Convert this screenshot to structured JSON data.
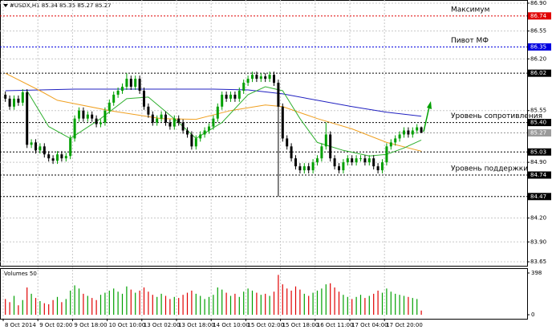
{
  "chart_data": {
    "type": "candlestick",
    "title": "#USDX,H1 85.34 85.35 85.27 85.27",
    "categories": [
      "8 Oct 2014",
      null,
      null,
      null,
      null,
      null,
      null,
      null,
      "9 Oct 02:00",
      null,
      null,
      null,
      null,
      null,
      null,
      null,
      "9 Oct 18:00",
      null,
      null,
      null,
      null,
      null,
      null,
      null,
      "10 Oct 10:00",
      null,
      null,
      null,
      null,
      null,
      null,
      null,
      "13 Oct 02:00",
      null,
      null,
      null,
      null,
      null,
      null,
      null,
      "13 Oct 18:00",
      null,
      null,
      null,
      null,
      null,
      null,
      null,
      "14 Oct 10:00",
      null,
      null,
      null,
      null,
      null,
      null,
      null,
      "15 Oct 02:00",
      null,
      null,
      null,
      null,
      null,
      null,
      null,
      "15 Oct 18:00",
      null,
      null,
      null,
      null,
      null,
      null,
      null,
      "16 Oct 11:00",
      null,
      null,
      null,
      null,
      null,
      null,
      null,
      "17 Oct 04:00",
      null,
      null,
      null,
      null,
      null,
      null,
      null,
      "17 Oct 20:00",
      null,
      null,
      null,
      null,
      null,
      null,
      null,
      null
    ],
    "open": [
      85.75,
      85.7,
      85.6,
      85.7,
      85.65,
      85.78,
      85.12,
      85.15,
      85.05,
      85.1,
      85.0,
      84.95,
      84.92,
      85.0,
      84.95,
      84.98,
      85.2,
      85.45,
      85.55,
      85.45,
      85.5,
      85.45,
      85.38,
      85.4,
      85.55,
      85.65,
      85.75,
      85.8,
      85.85,
      85.95,
      85.85,
      85.95,
      85.8,
      85.6,
      85.5,
      85.4,
      85.45,
      85.5,
      85.4,
      85.35,
      85.45,
      85.4,
      85.3,
      85.25,
      85.1,
      85.2,
      85.25,
      85.3,
      85.35,
      85.45,
      85.6,
      85.75,
      85.7,
      85.75,
      85.7,
      85.8,
      85.9,
      85.95,
      86.0,
      85.95,
      85.98,
      85.95,
      86.0,
      85.9,
      85.6,
      85.2,
      85.1,
      84.95,
      84.85,
      84.8,
      84.85,
      84.8,
      84.9,
      84.95,
      85.1,
      85.25,
      84.95,
      84.85,
      84.8,
      84.9,
      84.95,
      84.9,
      84.95,
      84.95,
      84.9,
      84.95,
      84.85,
      84.8,
      84.9,
      85.1,
      85.15,
      85.2,
      85.25,
      85.3,
      85.25,
      85.3,
      85.34
    ],
    "high": [
      85.79,
      85.74,
      85.74,
      85.74,
      85.82,
      85.82,
      85.19,
      85.19,
      85.14,
      85.14,
      85.04,
      84.99,
      85.04,
      85.04,
      85.02,
      85.24,
      85.49,
      85.59,
      85.59,
      85.54,
      85.54,
      85.49,
      85.44,
      85.59,
      85.69,
      85.79,
      85.84,
      85.89,
      86.02,
      85.99,
      85.99,
      85.99,
      85.84,
      85.64,
      85.54,
      85.49,
      85.54,
      85.54,
      85.44,
      85.49,
      85.49,
      85.44,
      85.34,
      85.29,
      85.24,
      85.29,
      85.34,
      85.39,
      85.49,
      85.64,
      85.79,
      85.79,
      85.79,
      85.79,
      85.84,
      85.94,
      85.99,
      86.04,
      86.04,
      86.02,
      86.02,
      86.04,
      86.04,
      85.94,
      85.64,
      85.24,
      85.14,
      84.99,
      84.89,
      84.89,
      84.89,
      84.94,
      84.99,
      85.14,
      85.4,
      85.29,
      84.99,
      84.89,
      84.94,
      84.99,
      84.99,
      84.99,
      84.99,
      84.99,
      84.99,
      84.99,
      84.89,
      84.94,
      85.14,
      85.19,
      85.24,
      85.29,
      85.34,
      85.34,
      85.34,
      85.38,
      85.35
    ],
    "low": [
      85.66,
      85.56,
      85.56,
      85.61,
      85.61,
      85.08,
      85.08,
      85.01,
      85.01,
      84.96,
      84.91,
      84.88,
      84.88,
      84.91,
      84.91,
      84.94,
      85.16,
      85.41,
      85.41,
      85.41,
      85.41,
      85.34,
      85.34,
      85.36,
      85.51,
      85.61,
      85.71,
      85.76,
      85.81,
      85.81,
      85.81,
      85.76,
      85.56,
      85.46,
      85.36,
      85.36,
      85.41,
      85.36,
      85.31,
      85.31,
      85.36,
      85.26,
      85.21,
      85.06,
      85.06,
      85.16,
      85.21,
      85.26,
      85.31,
      85.41,
      85.56,
      85.66,
      85.66,
      85.66,
      85.66,
      85.76,
      85.86,
      85.91,
      85.91,
      85.91,
      85.91,
      85.91,
      85.86,
      84.47,
      85.16,
      85.06,
      84.91,
      84.81,
      84.76,
      84.76,
      84.76,
      84.76,
      84.86,
      84.91,
      85.06,
      84.91,
      84.81,
      84.76,
      84.76,
      84.86,
      84.86,
      84.86,
      84.91,
      84.86,
      84.86,
      84.81,
      84.76,
      84.76,
      84.86,
      85.06,
      85.11,
      85.16,
      85.21,
      85.21,
      85.21,
      85.26,
      85.27
    ],
    "close": [
      85.7,
      85.6,
      85.7,
      85.65,
      85.78,
      85.12,
      85.15,
      85.05,
      85.1,
      85.0,
      84.95,
      84.92,
      85.0,
      84.95,
      84.98,
      85.2,
      85.45,
      85.55,
      85.45,
      85.5,
      85.45,
      85.38,
      85.4,
      85.55,
      85.65,
      85.75,
      85.8,
      85.85,
      85.95,
      85.85,
      85.95,
      85.8,
      85.6,
      85.5,
      85.4,
      85.45,
      85.5,
      85.4,
      85.35,
      85.45,
      85.4,
      85.3,
      85.25,
      85.1,
      85.2,
      85.25,
      85.3,
      85.35,
      85.45,
      85.6,
      85.75,
      85.7,
      85.75,
      85.7,
      85.8,
      85.9,
      85.95,
      86.0,
      85.95,
      85.98,
      85.95,
      86.0,
      85.9,
      85.6,
      85.2,
      85.1,
      84.95,
      84.85,
      84.8,
      84.85,
      84.8,
      84.9,
      84.95,
      85.1,
      85.25,
      84.95,
      84.85,
      84.8,
      84.9,
      84.95,
      84.9,
      84.95,
      84.95,
      84.9,
      84.95,
      84.85,
      84.8,
      84.9,
      85.1,
      85.15,
      85.2,
      85.25,
      85.3,
      85.25,
      85.3,
      85.34,
      85.27
    ],
    "up_color": "#00a000",
    "down_color": "#000000",
    "ylim": [
      83.61,
      86.94
    ],
    "yticks": [
      {
        "value": 86.9,
        "label": "86.90"
      },
      86.55,
      {
        "value": 86.2,
        "label": "86.20"
      },
      85.55,
      {
        "value": 84.9,
        "label": "84.90"
      },
      {
        "value": 84.2,
        "label": "84.20"
      },
      {
        "value": 83.9,
        "label": "83.90"
      },
      83.65
    ],
    "grid": true,
    "levels": [
      {
        "value": 86.74,
        "color": "#e00000",
        "text": "Максимум"
      },
      {
        "value": 86.35,
        "color": "#0000e0",
        "text": "Пивот МФ"
      },
      {
        "value": 86.02,
        "color": "#000000"
      },
      {
        "value": {
          "value": 85.4,
          "label": "85.40"
        },
        "color": "#000000",
        "text": "Уровень сопротивления"
      },
      {
        "value": 85.27,
        "color": "#9a9a9a"
      },
      {
        "value": 85.03,
        "color": "#000000"
      },
      {
        "value": 84.74,
        "color": "#000000",
        "text": "Уровень поддержки"
      },
      {
        "value": 84.47,
        "color": "#000000"
      }
    ],
    "moving_averages": [
      {
        "color": "#2020c0",
        "x": [
          0,
          16,
          32,
          48,
          56,
          64,
          72,
          80,
          88,
          96
        ],
        "values": [
          85.8,
          85.82,
          85.82,
          85.82,
          85.81,
          85.76,
          85.68,
          85.6,
          85.53,
          85.48
        ]
      },
      {
        "color": "#f0a020",
        "x": [
          0,
          8,
          12,
          24,
          36,
          44,
          52,
          60,
          64,
          72,
          80,
          88,
          96
        ],
        "values": [
          86.02,
          85.8,
          85.68,
          85.55,
          85.45,
          85.44,
          85.55,
          85.62,
          85.6,
          85.45,
          85.32,
          85.15,
          85.04
        ]
      },
      {
        "color": "#30b030",
        "x": [
          5,
          10,
          15,
          22,
          28,
          33,
          40,
          44,
          50,
          56,
          60,
          64,
          68,
          72,
          78,
          84,
          88,
          92,
          96
        ],
        "values": [
          85.8,
          85.35,
          85.2,
          85.45,
          85.7,
          85.72,
          85.4,
          85.2,
          85.4,
          85.75,
          85.85,
          85.8,
          85.45,
          85.15,
          85.05,
          84.98,
          85.0,
          85.08,
          85.18
        ]
      }
    ],
    "volume": {
      "label": "Volumes 50",
      "values": [
        150,
        120,
        180,
        90,
        140,
        260,
        200,
        160,
        130,
        110,
        100,
        140,
        170,
        120,
        150,
        230,
        280,
        250,
        200,
        180,
        160,
        140,
        190,
        210,
        230,
        250,
        220,
        200,
        270,
        240,
        210,
        230,
        260,
        220,
        190,
        170,
        200,
        180,
        150,
        170,
        160,
        190,
        210,
        230,
        200,
        180,
        150,
        170,
        190,
        260,
        240,
        210,
        180,
        200,
        170,
        220,
        250,
        230,
        210,
        190,
        200,
        180,
        220,
        380,
        290,
        250,
        230,
        270,
        240,
        200,
        180,
        210,
        230,
        250,
        290,
        300,
        260,
        220,
        190,
        170,
        150,
        170,
        190,
        160,
        180,
        200,
        230,
        210,
        250,
        220,
        200,
        190,
        180,
        170,
        160,
        150,
        40
      ],
      "ylim": [
        0,
        398
      ],
      "yticks": [
        0,
        398
      ]
    }
  }
}
